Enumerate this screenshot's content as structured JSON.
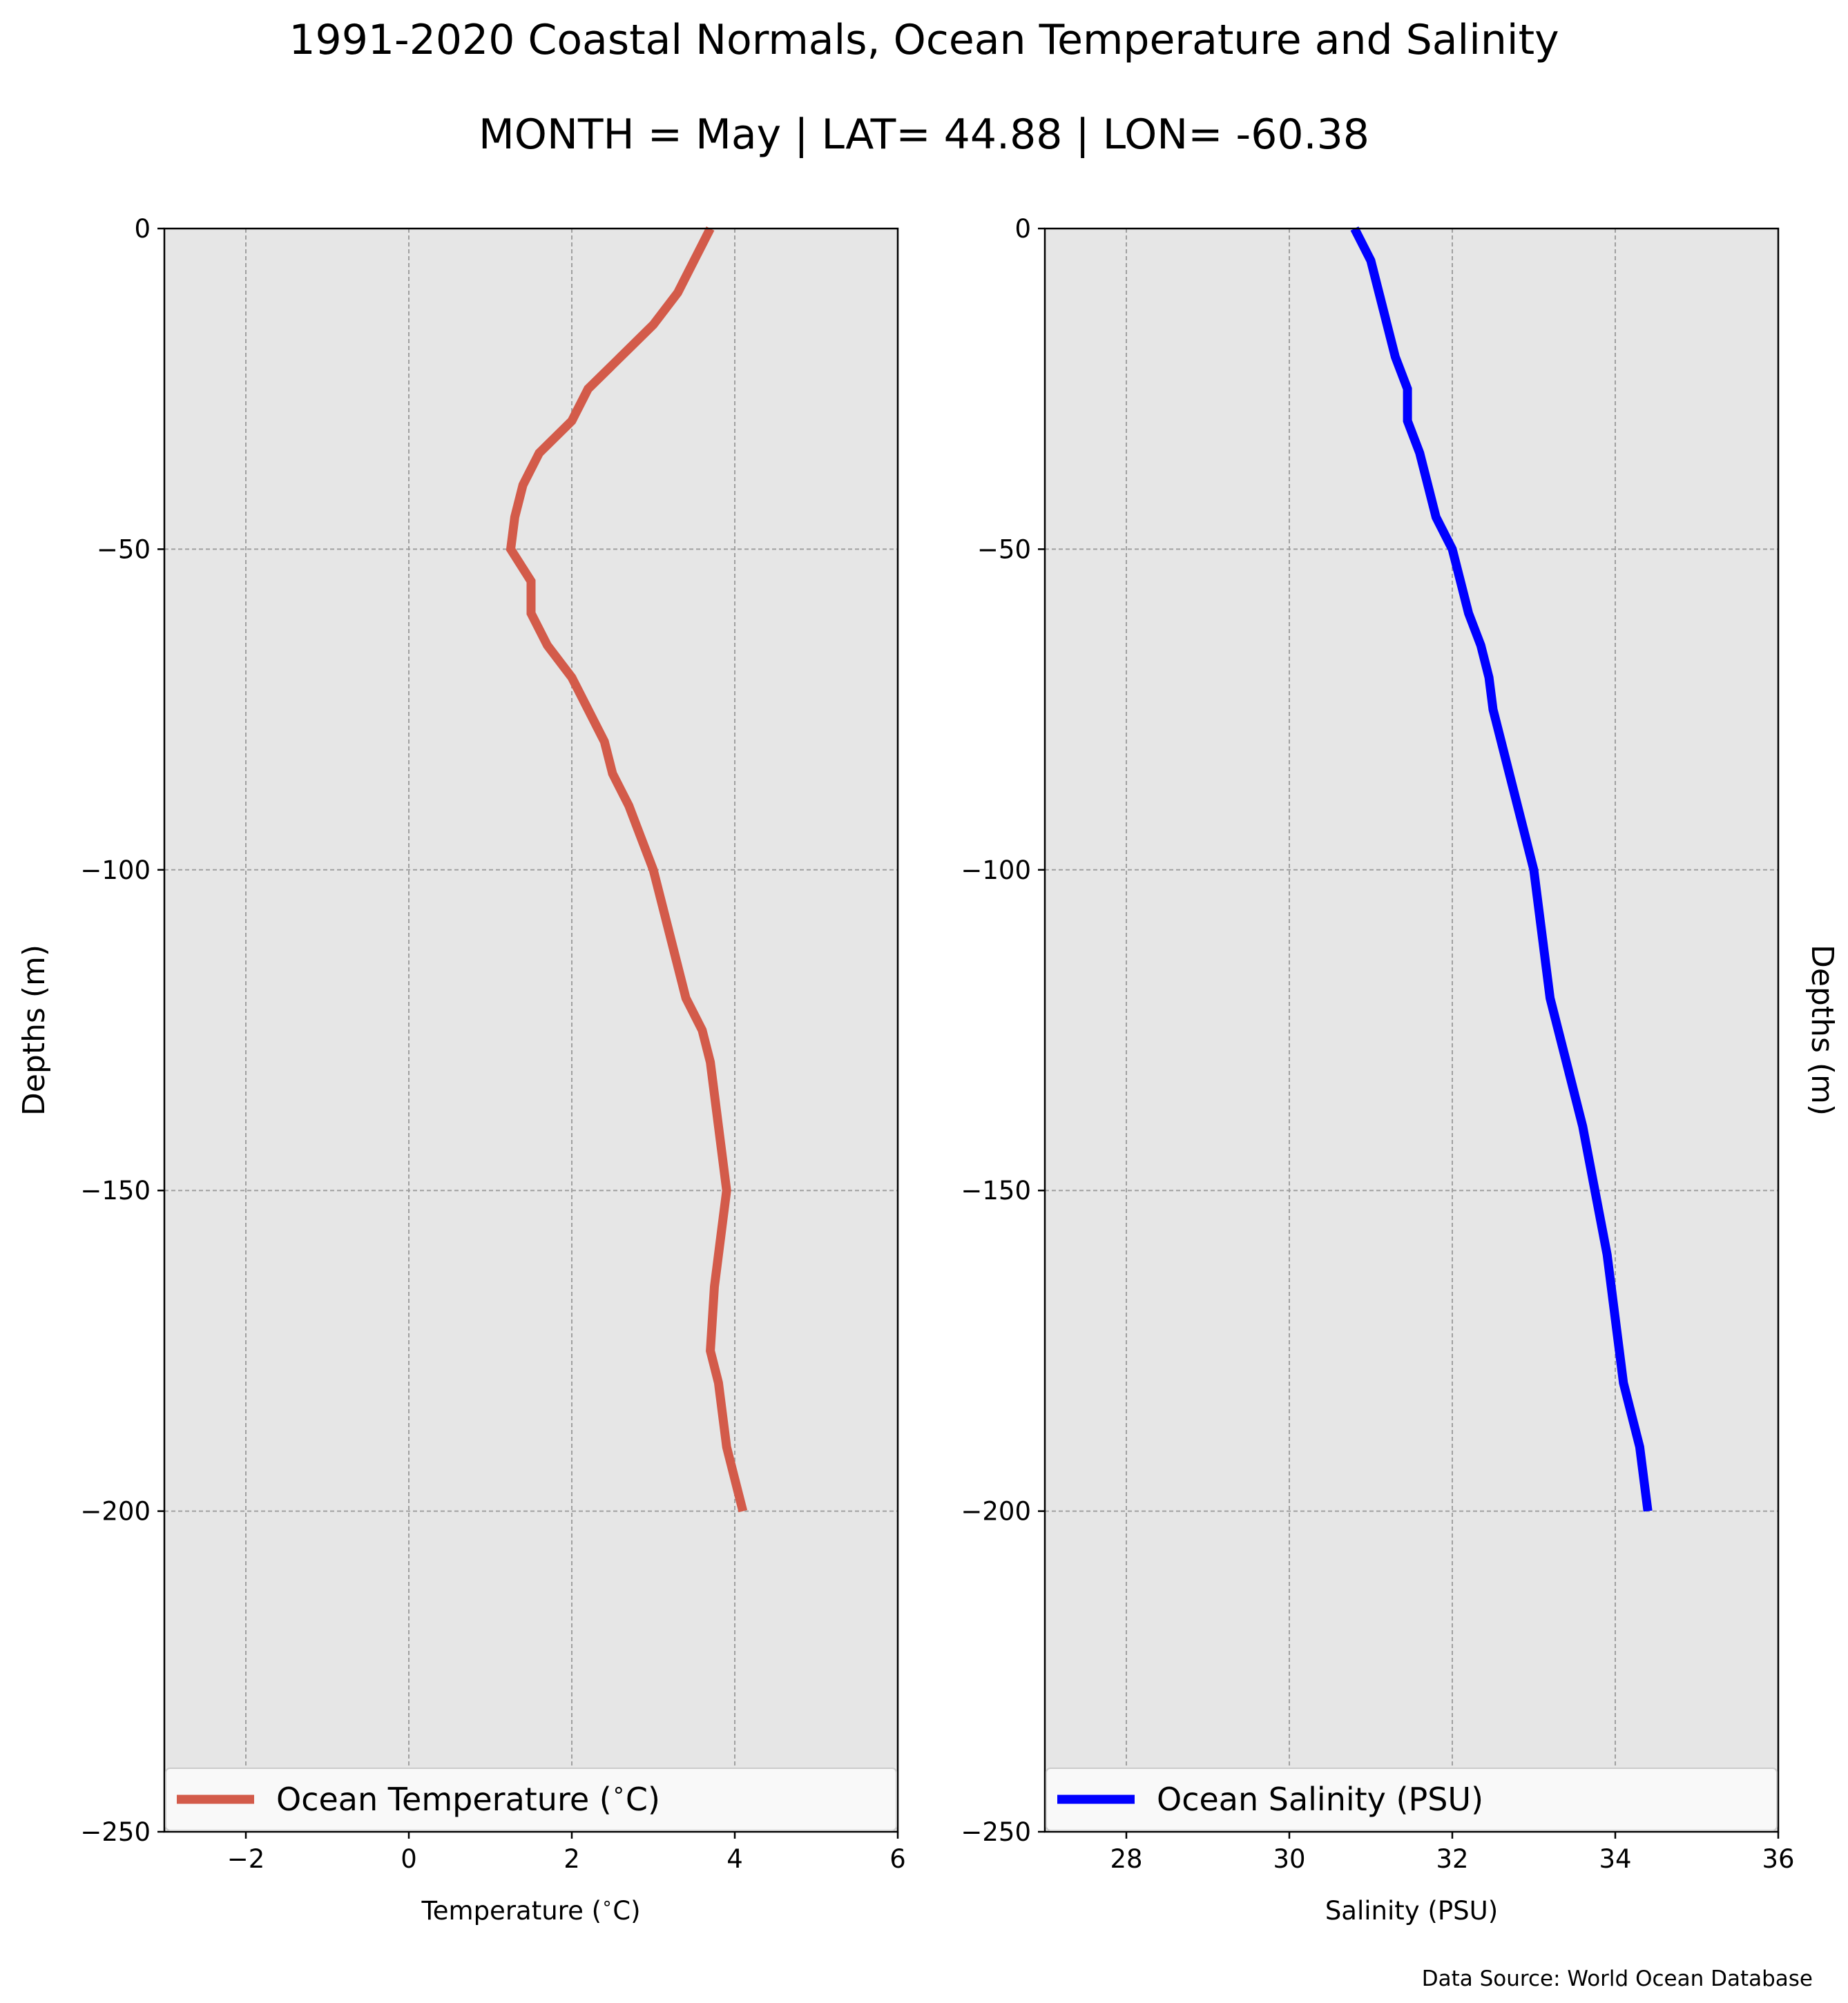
{
  "figure": {
    "title": "1991-2020 Coastal Normals, Ocean Temperature and Salinity",
    "subtitle": "MONTH = May | LAT= 44.88 | LON= -60.38",
    "source_note": "Data Source: World Ocean Database"
  },
  "chart_data": [
    {
      "type": "line",
      "xlabel": "Temperature ($^\\circ$C)",
      "ylabel": "Depths (m)",
      "xlim": [
        -3,
        6
      ],
      "ylim": [
        -250,
        0
      ],
      "xticks": [
        "−2",
        "0",
        "2",
        "4",
        "6"
      ],
      "xtick_values": [
        -2,
        0,
        2,
        4,
        6
      ],
      "yticks": [
        "0",
        "−50",
        "−100",
        "−150",
        "−200",
        "−250"
      ],
      "ytick_values": [
        0,
        -50,
        -100,
        -150,
        -200,
        -250
      ],
      "grid": true,
      "legend_position": "lower center",
      "series": [
        {
          "name": "Ocean Temperature ($^\\circ$C)",
          "color": "#d35b4a",
          "x": [
            3.7,
            3.5,
            3.3,
            3.0,
            2.6,
            2.2,
            2.0,
            1.6,
            1.4,
            1.3,
            1.25,
            1.5,
            1.5,
            1.7,
            2.0,
            2.4,
            2.5,
            2.7,
            2.85,
            3.0,
            3.2,
            3.4,
            3.6,
            3.7,
            3.8,
            3.9,
            3.85,
            3.8,
            3.75,
            3.7,
            3.8,
            3.9,
            4.0,
            4.1
          ],
          "y": [
            0,
            -5,
            -10,
            -15,
            -20,
            -25,
            -30,
            -35,
            -40,
            -45,
            -50,
            -55,
            -60,
            -65,
            -70,
            -80,
            -85,
            -90,
            -95,
            -100,
            -110,
            -120,
            -125,
            -130,
            -140,
            -150,
            -155,
            -160,
            -165,
            -175,
            -180,
            -190,
            -195,
            -200
          ]
        }
      ]
    },
    {
      "type": "line",
      "xlabel": "Salinity (PSU)",
      "ylabel": "Depths (m)",
      "xlim": [
        27,
        36
      ],
      "ylim": [
        -250,
        0
      ],
      "xticks": [
        "28",
        "30",
        "32",
        "34",
        "36"
      ],
      "xtick_values": [
        28,
        30,
        32,
        34,
        36
      ],
      "yticks": [
        "0",
        "−50",
        "−100",
        "−150",
        "−200",
        "−250"
      ],
      "ytick_values": [
        0,
        -50,
        -100,
        -150,
        -200,
        -250
      ],
      "grid": true,
      "legend_position": "lower center",
      "series": [
        {
          "name": "Ocean Salinity (PSU)",
          "color": "#0000ff",
          "x": [
            30.8,
            31.0,
            31.1,
            31.2,
            31.3,
            31.45,
            31.45,
            31.6,
            31.7,
            31.8,
            32.0,
            32.1,
            32.2,
            32.35,
            32.45,
            32.5,
            32.6,
            32.7,
            32.8,
            32.9,
            33.0,
            33.1,
            33.2,
            33.4,
            33.6,
            33.75,
            33.9,
            34.0,
            34.1,
            34.2,
            34.3,
            34.4
          ],
          "y": [
            0,
            -5,
            -10,
            -15,
            -20,
            -25,
            -30,
            -35,
            -40,
            -45,
            -50,
            -55,
            -60,
            -65,
            -70,
            -75,
            -80,
            -85,
            -90,
            -95,
            -100,
            -110,
            -120,
            -130,
            -140,
            -150,
            -160,
            -170,
            -180,
            -185,
            -190,
            -200
          ]
        }
      ]
    }
  ]
}
